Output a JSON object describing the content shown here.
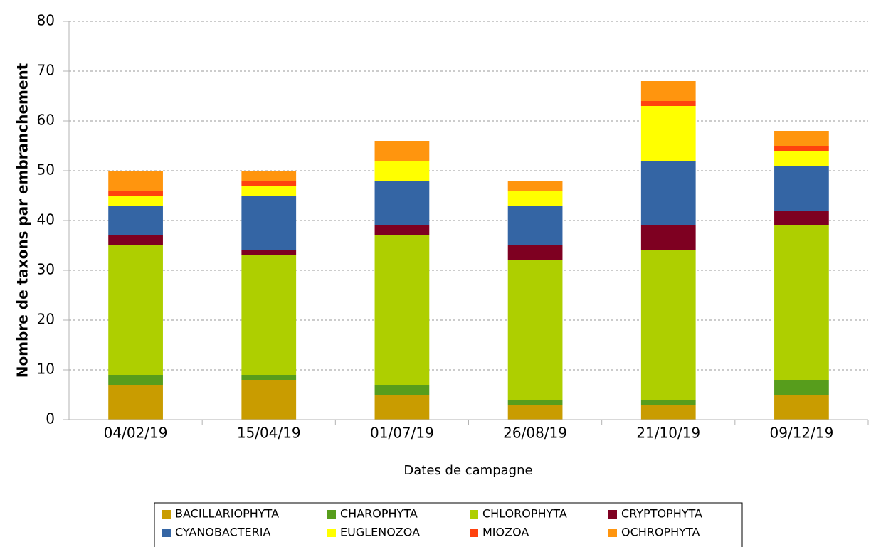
{
  "chart_data": {
    "type": "stacked_bar",
    "xlabel": "Dates de campagne",
    "ylabel": "Nombre de taxons par embranchement",
    "categories": [
      "04/02/19",
      "15/04/19",
      "01/07/19",
      "26/08/19",
      "21/10/19",
      "09/12/19"
    ],
    "series": [
      {
        "name": "BACILLARIOPHYTA",
        "color": "#c99c00",
        "values": [
          7,
          8,
          5,
          3,
          3,
          5
        ]
      },
      {
        "name": "CHAROPHYTA",
        "color": "#579d1c",
        "values": [
          2,
          1,
          2,
          1,
          1,
          3
        ]
      },
      {
        "name": "CHLOROPHYTA",
        "color": "#aecf00",
        "values": [
          26,
          24,
          30,
          28,
          30,
          31
        ]
      },
      {
        "name": "CRYPTOPHYTA",
        "color": "#7e0021",
        "values": [
          2,
          1,
          2,
          3,
          5,
          3
        ]
      },
      {
        "name": "CYANOBACTERIA",
        "color": "#3465a4",
        "values": [
          6,
          11,
          9,
          8,
          13,
          9
        ]
      },
      {
        "name": "EUGLENOZOA",
        "color": "#ffff00",
        "values": [
          2,
          2,
          4,
          3,
          11,
          3
        ]
      },
      {
        "name": "MIOZOA",
        "color": "#ff420e",
        "values": [
          1,
          1,
          0,
          0,
          1,
          1
        ]
      },
      {
        "name": "OCHROPHYTA",
        "color": "#ff950e",
        "values": [
          4,
          2,
          4,
          2,
          4,
          3
        ]
      }
    ],
    "ylim": [
      0,
      80
    ],
    "yticks": [
      0,
      10,
      20,
      30,
      40,
      50,
      60,
      70,
      80
    ],
    "grid": true,
    "legend": "bottom"
  }
}
